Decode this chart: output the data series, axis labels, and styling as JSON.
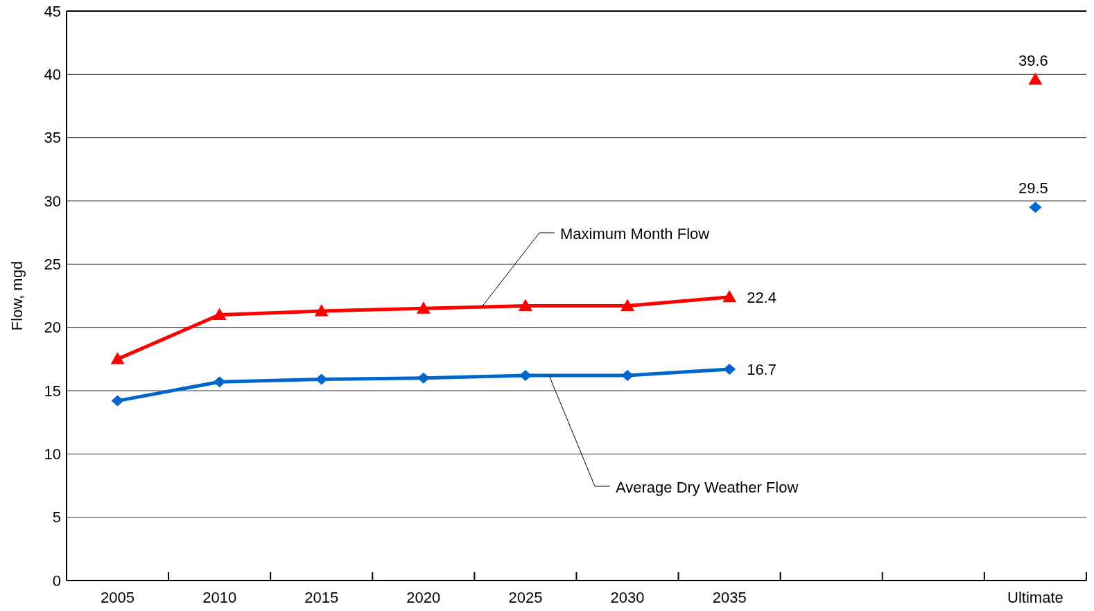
{
  "chart_data": {
    "type": "line",
    "ylabel": "Flow, mgd",
    "categories": [
      "2005",
      "2010",
      "2015",
      "2020",
      "2025",
      "2030",
      "2035",
      null,
      null,
      "Ultimate"
    ],
    "series": [
      {
        "name": "Maximum Month Flow",
        "color": "#ff0000",
        "marker": "triangle",
        "values": [
          17.5,
          21.0,
          21.3,
          21.5,
          21.7,
          21.7,
          22.4,
          null,
          null,
          39.6
        ],
        "value_labels": [
          null,
          null,
          null,
          null,
          null,
          null,
          "22.4",
          null,
          null,
          "39.6"
        ]
      },
      {
        "name": "Average Dry Weather Flow",
        "color": "#0066cc",
        "marker": "diamond",
        "values": [
          14.2,
          15.7,
          15.9,
          16.0,
          16.2,
          16.2,
          16.7,
          null,
          null,
          29.5
        ],
        "value_labels": [
          null,
          null,
          null,
          null,
          null,
          null,
          "16.7",
          null,
          null,
          "29.5"
        ]
      }
    ],
    "ylim": [
      0,
      45
    ],
    "yticks": [
      0,
      5,
      10,
      15,
      20,
      25,
      30,
      35,
      40,
      45
    ],
    "grid": "y"
  }
}
